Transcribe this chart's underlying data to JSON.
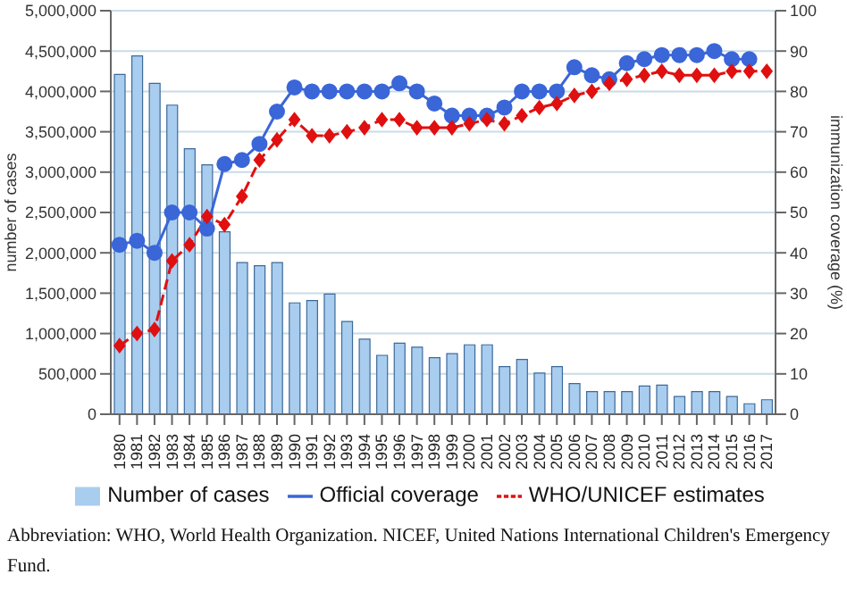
{
  "chart_data": {
    "type": "bar",
    "ylabel": "number of cases",
    "y2label": "immunization coverage (%)",
    "categories": [
      "1980",
      "1981",
      "1982",
      "1983",
      "1984",
      "1985",
      "1986",
      "1987",
      "1988",
      "1989",
      "1990",
      "1991",
      "1992",
      "1993",
      "1994",
      "1995",
      "1996",
      "1997",
      "1998",
      "1999",
      "2000",
      "2001",
      "2002",
      "2003",
      "2004",
      "2005",
      "2006",
      "2007",
      "2008",
      "2009",
      "2010",
      "2011",
      "2012",
      "2013",
      "2014",
      "2015",
      "2016",
      "2017"
    ],
    "series": [
      {
        "name": "Number of cases",
        "color": "#a9cdef",
        "values": [
          4210000,
          4440000,
          4100000,
          3830000,
          3290000,
          3090000,
          2260000,
          1880000,
          1840000,
          1880000,
          1380000,
          1410000,
          1490000,
          1150000,
          930000,
          730000,
          880000,
          830000,
          700000,
          750000,
          860000,
          860000,
          590000,
          680000,
          510000,
          590000,
          380000,
          280000,
          280000,
          280000,
          350000,
          360000,
          220000,
          280000,
          280000,
          220000,
          130000,
          180000
        ]
      },
      {
        "name": "Official coverage",
        "type": "line",
        "axis": "y2",
        "color": "#3a66d8",
        "marker": "circle",
        "line_style": "solid",
        "values": [
          42,
          43,
          40,
          50,
          50,
          46,
          62,
          63,
          67,
          75,
          81,
          80,
          80,
          80,
          80,
          80,
          82,
          80,
          77,
          74,
          74,
          74,
          76,
          80,
          80,
          80,
          86,
          84,
          83,
          87,
          88,
          89,
          89,
          89,
          90,
          88,
          88,
          null
        ]
      },
      {
        "name": "WHO/UNICEF estimates",
        "type": "line",
        "axis": "y2",
        "color": "#e01010",
        "marker": "diamond",
        "line_style": "dashed",
        "values": [
          17,
          20,
          21,
          38,
          42,
          49,
          47,
          54,
          63,
          68,
          73,
          69,
          69,
          70,
          71,
          73,
          73,
          71,
          71,
          71,
          72,
          73,
          72,
          74,
          76,
          77,
          79,
          80,
          82,
          83,
          84,
          85,
          84,
          84,
          84,
          85,
          85,
          85
        ]
      }
    ],
    "ylim": [
      0,
      5000000
    ],
    "yticks": [
      {
        "value": 0,
        "label": "0"
      },
      {
        "value": 500000,
        "label": "500,000"
      },
      {
        "value": 1000000,
        "label": "1,000,000"
      },
      {
        "value": 1500000,
        "label": "1,500,000"
      },
      {
        "value": 2000000,
        "label": "2,000,000"
      },
      {
        "value": 2500000,
        "label": "2,500,000"
      },
      {
        "value": 3000000,
        "label": "3,000,000"
      },
      {
        "value": 3500000,
        "label": "3,500,000"
      },
      {
        "value": 4000000,
        "label": "4,000,000"
      },
      {
        "value": 4500000,
        "label": "4,500,000"
      },
      {
        "value": 5000000,
        "label": "5,000,000"
      }
    ],
    "y2lim": [
      0,
      100
    ],
    "y2ticks": [
      0,
      10,
      20,
      30,
      40,
      50,
      60,
      70,
      80,
      90,
      100
    ],
    "grid": "y",
    "legend": "bottom",
    "annotations": [
      "Abbreviation: WHO, World Health Organization. NICEF, United Nations International Children's Emergency Fund."
    ]
  }
}
